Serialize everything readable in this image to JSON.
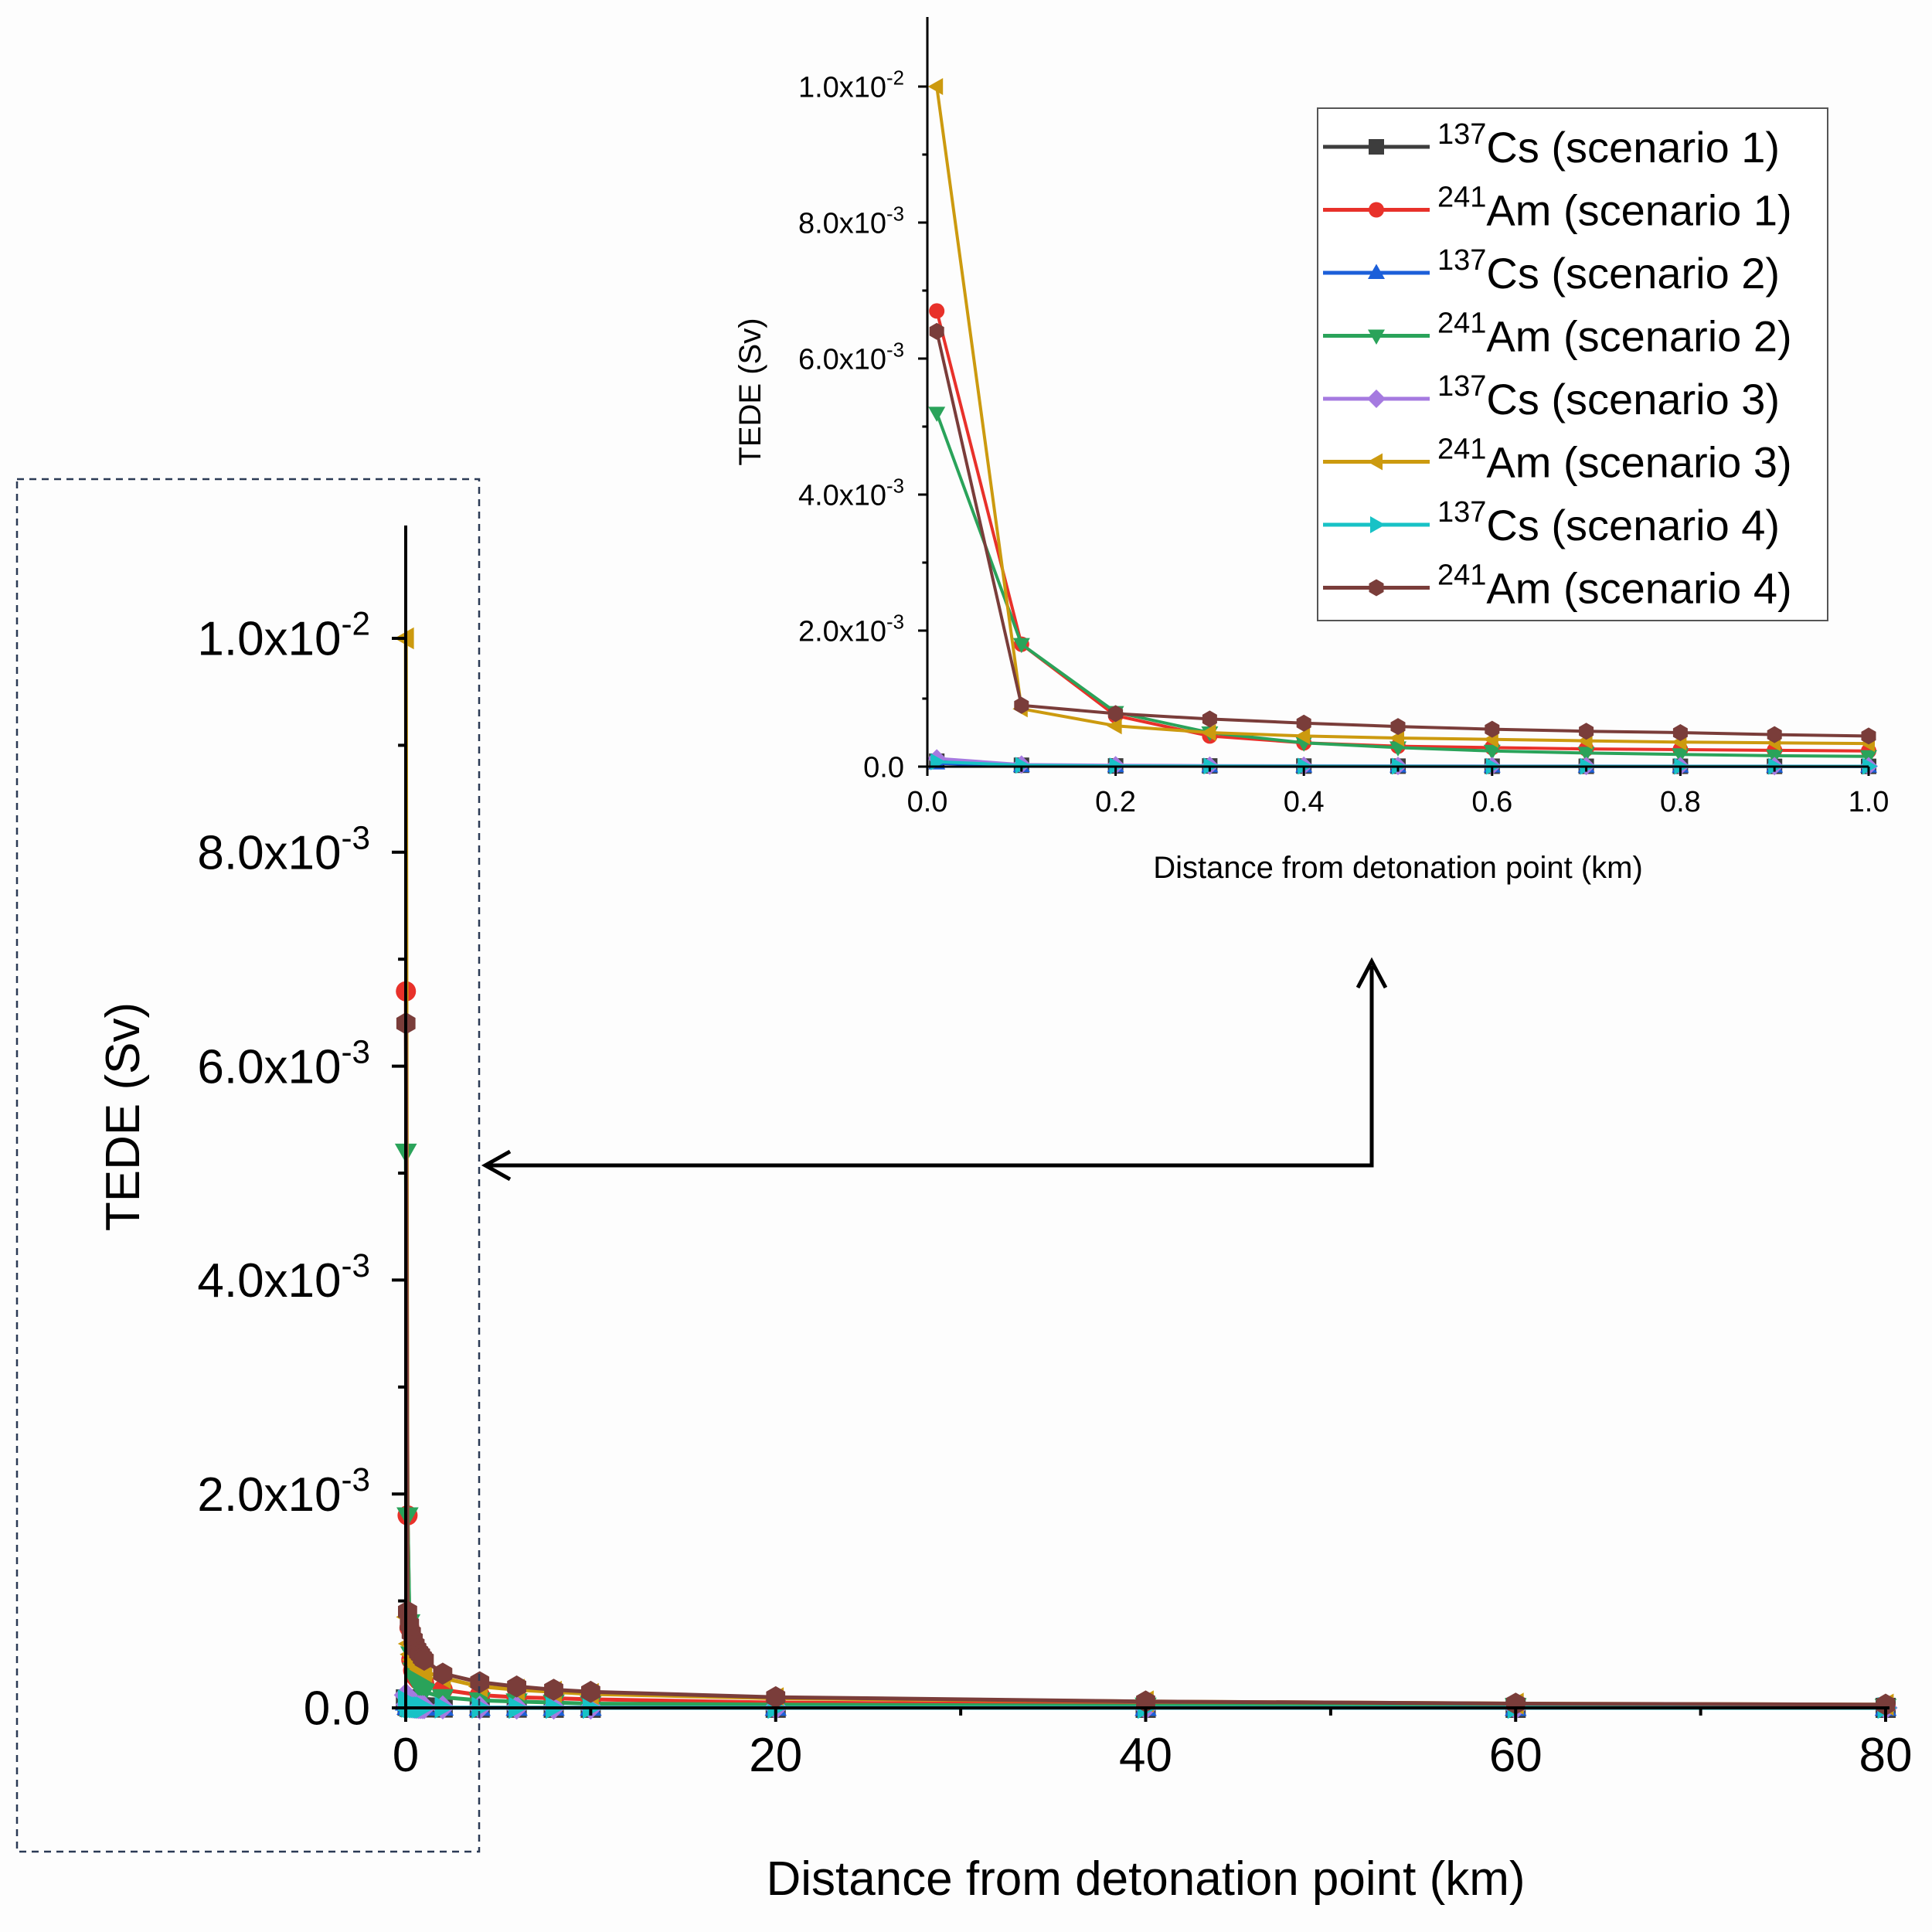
{
  "figure": {
    "colors": {
      "background": "#fdfdfd",
      "axis": "#000000",
      "highlight_box": "#2b3a55",
      "arrow": "#000000"
    }
  },
  "series_styles": [
    {
      "name": "137Cs (scenario 1)",
      "isotope_mass": "137",
      "isotope_symbol": "Cs",
      "scenario": "(scenario 1)",
      "color": "#3d3d3d",
      "marker": "square"
    },
    {
      "name": "241Am (scenario 1)",
      "isotope_mass": "241",
      "isotope_symbol": "Am",
      "scenario": "(scenario 1)",
      "color": "#e8312a",
      "marker": "circle"
    },
    {
      "name": "137Cs (scenario 2)",
      "isotope_mass": "137",
      "isotope_symbol": "Cs",
      "scenario": "(scenario 2)",
      "color": "#1c5fd9",
      "marker": "triangle-up"
    },
    {
      "name": "241Am (scenario 2)",
      "isotope_mass": "241",
      "isotope_symbol": "Am",
      "scenario": "(scenario 2)",
      "color": "#2aa35a",
      "marker": "triangle-down"
    },
    {
      "name": "137Cs (scenario 3)",
      "isotope_mass": "137",
      "isotope_symbol": "Cs",
      "scenario": "(scenario 3)",
      "color": "#a57ae0",
      "marker": "diamond"
    },
    {
      "name": "241Am (scenario 3)",
      "isotope_mass": "241",
      "isotope_symbol": "Am",
      "scenario": "(scenario 3)",
      "color": "#cc9a0f",
      "marker": "triangle-left"
    },
    {
      "name": "137Cs (scenario 4)",
      "isotope_mass": "137",
      "isotope_symbol": "Cs",
      "scenario": "(scenario 4)",
      "color": "#18c2c6",
      "marker": "triangle-right"
    },
    {
      "name": "241Am (scenario 4)",
      "isotope_mass": "241",
      "isotope_symbol": "Am",
      "scenario": "(scenario 4)",
      "color": "#7a3d3a",
      "marker": "hexagon"
    }
  ],
  "chart_data": [
    {
      "id": "main",
      "type": "line",
      "xlabel": "Distance from detonation point (km)",
      "ylabel": "TEDE (Sv)",
      "xlim": [
        0,
        80
      ],
      "ylim": [
        0,
        0.011
      ],
      "xticks": [
        0,
        20,
        40,
        60,
        80
      ],
      "xtick_labels": [
        "0",
        "20",
        "40",
        "60",
        "80"
      ],
      "yticks": [
        0,
        0.002,
        0.004,
        0.006,
        0.008,
        0.01
      ],
      "ytick_labels": [
        {
          "mantissa": "0.0",
          "exp": ""
        },
        {
          "mantissa": "2.0x10",
          "exp": "-3"
        },
        {
          "mantissa": "4.0x10",
          "exp": "-3"
        },
        {
          "mantissa": "6.0x10",
          "exp": "-3"
        },
        {
          "mantissa": "8.0x10",
          "exp": "-3"
        },
        {
          "mantissa": "1.0x10",
          "exp": "-2"
        }
      ],
      "x": [
        0.01,
        0.1,
        0.2,
        0.3,
        0.4,
        0.5,
        0.6,
        0.7,
        0.8,
        0.9,
        1,
        2,
        4,
        6,
        8,
        10,
        20,
        40,
        60,
        80
      ],
      "series": [
        {
          "name": "137Cs (scenario 1)",
          "values": [
            8e-05,
            2e-05,
            1e-05,
            1e-05,
            8e-06,
            7e-06,
            6e-06,
            5e-06,
            5e-06,
            4e-06,
            4e-06,
            3e-06,
            2e-06,
            2e-06,
            1e-06,
            1e-06,
            1e-06,
            5e-07,
            4e-07,
            3e-07
          ]
        },
        {
          "name": "241Am (scenario 1)",
          "values": [
            0.0067,
            0.0018,
            0.00075,
            0.00045,
            0.00035,
            0.0003,
            0.00028,
            0.00026,
            0.00025,
            0.00024,
            0.00023,
            0.00017,
            0.00012,
            0.0001,
            9e-05,
            8e-05,
            5e-05,
            3e-05,
            2e-05,
            1.5e-05
          ]
        },
        {
          "name": "137Cs (scenario 2)",
          "values": [
            5e-05,
            1e-05,
            8e-06,
            6e-06,
            5e-06,
            4e-06,
            4e-06,
            3e-06,
            3e-06,
            3e-06,
            3e-06,
            2e-06,
            1e-06,
            1e-06,
            1e-06,
            8e-07,
            5e-07,
            3e-07,
            2e-07,
            2e-07
          ]
        },
        {
          "name": "241Am (scenario 2)",
          "values": [
            0.0052,
            0.0018,
            0.0008,
            0.0005,
            0.00035,
            0.00028,
            0.00023,
            0.0002,
            0.00018,
            0.00016,
            0.00015,
            0.0001,
            7e-05,
            6e-05,
            5e-05,
            4e-05,
            3e-05,
            2e-05,
            1.5e-05,
            1e-05
          ]
        },
        {
          "name": "137Cs (scenario 3)",
          "values": [
            0.00012,
            3e-05,
            2e-05,
            1.5e-05,
            1.2e-05,
            1e-05,
            9e-06,
            8e-06,
            7e-06,
            7e-06,
            6e-06,
            4e-06,
            3e-06,
            2e-06,
            2e-06,
            2e-06,
            1e-06,
            8e-07,
            6e-07,
            5e-07
          ]
        },
        {
          "name": "241Am (scenario 3)",
          "values": [
            0.01,
            0.00085,
            0.0006,
            0.0005,
            0.00045,
            0.00042,
            0.0004,
            0.00038,
            0.00036,
            0.00035,
            0.00034,
            0.00028,
            0.0002,
            0.00017,
            0.00015,
            0.00013,
            9e-05,
            6e-05,
            4e-05,
            3e-05
          ]
        },
        {
          "name": "137Cs (scenario 4)",
          "values": [
            7e-05,
            2e-05,
            1e-05,
            8e-06,
            7e-06,
            6e-06,
            5e-06,
            5e-06,
            4e-06,
            4e-06,
            4e-06,
            3e-06,
            2e-06,
            1e-06,
            1e-06,
            1e-06,
            8e-07,
            5e-07,
            4e-07,
            3e-07
          ]
        },
        {
          "name": "241Am (scenario 4)",
          "values": [
            0.0064,
            0.0009,
            0.00078,
            0.0007,
            0.00064,
            0.00059,
            0.00055,
            0.00052,
            0.0005,
            0.00047,
            0.00045,
            0.00032,
            0.00024,
            0.0002,
            0.00017,
            0.00015,
            0.0001,
            6e-05,
            4e-05,
            3e-05
          ]
        }
      ]
    },
    {
      "id": "inset",
      "type": "line",
      "xlabel": "Distance from detonation point (km)",
      "ylabel": "TEDE (Sv)",
      "xlim": [
        0,
        1
      ],
      "ylim": [
        0,
        0.011
      ],
      "xticks": [
        0,
        0.2,
        0.4,
        0.6,
        0.8,
        1.0
      ],
      "xtick_labels": [
        "0.0",
        "0.2",
        "0.4",
        "0.6",
        "0.8",
        "1.0"
      ],
      "yticks": [
        0,
        0.002,
        0.004,
        0.006,
        0.008,
        0.01
      ],
      "ytick_labels": [
        {
          "mantissa": "0.0",
          "exp": ""
        },
        {
          "mantissa": "2.0x10",
          "exp": "-3"
        },
        {
          "mantissa": "4.0x10",
          "exp": "-3"
        },
        {
          "mantissa": "6.0x10",
          "exp": "-3"
        },
        {
          "mantissa": "8.0x10",
          "exp": "-3"
        },
        {
          "mantissa": "1.0x10",
          "exp": "-2"
        }
      ],
      "legend_position": "top-right",
      "x": [
        0.01,
        0.1,
        0.2,
        0.3,
        0.4,
        0.5,
        0.6,
        0.7,
        0.8,
        0.9,
        1.0
      ],
      "series": [
        {
          "name": "137Cs (scenario 1)",
          "values": [
            8e-05,
            2e-05,
            1e-05,
            1e-05,
            8e-06,
            7e-06,
            6e-06,
            5e-06,
            5e-06,
            4e-06,
            4e-06
          ]
        },
        {
          "name": "241Am (scenario 1)",
          "values": [
            0.0067,
            0.0018,
            0.00075,
            0.00045,
            0.00035,
            0.0003,
            0.00028,
            0.00026,
            0.00025,
            0.00024,
            0.00023
          ]
        },
        {
          "name": "137Cs (scenario 2)",
          "values": [
            5e-05,
            1e-05,
            8e-06,
            6e-06,
            5e-06,
            4e-06,
            4e-06,
            3e-06,
            3e-06,
            3e-06,
            3e-06
          ]
        },
        {
          "name": "241Am (scenario 2)",
          "values": [
            0.0052,
            0.0018,
            0.0008,
            0.0005,
            0.00035,
            0.00028,
            0.00023,
            0.0002,
            0.00018,
            0.00016,
            0.00015
          ]
        },
        {
          "name": "137Cs (scenario 3)",
          "values": [
            0.00012,
            3e-05,
            2e-05,
            1.5e-05,
            1.2e-05,
            1e-05,
            9e-06,
            8e-06,
            7e-06,
            7e-06,
            6e-06
          ]
        },
        {
          "name": "241Am (scenario 3)",
          "values": [
            0.01,
            0.00085,
            0.0006,
            0.0005,
            0.00045,
            0.00042,
            0.0004,
            0.00038,
            0.00036,
            0.00035,
            0.00034
          ]
        },
        {
          "name": "137Cs (scenario 4)",
          "values": [
            7e-05,
            2e-05,
            1e-05,
            8e-06,
            7e-06,
            6e-06,
            5e-06,
            5e-06,
            4e-06,
            4e-06,
            4e-06
          ]
        },
        {
          "name": "241Am (scenario 4)",
          "values": [
            0.0064,
            0.0009,
            0.00078,
            0.0007,
            0.00064,
            0.00059,
            0.00055,
            0.00052,
            0.0005,
            0.00047,
            0.00045
          ]
        }
      ]
    }
  ]
}
